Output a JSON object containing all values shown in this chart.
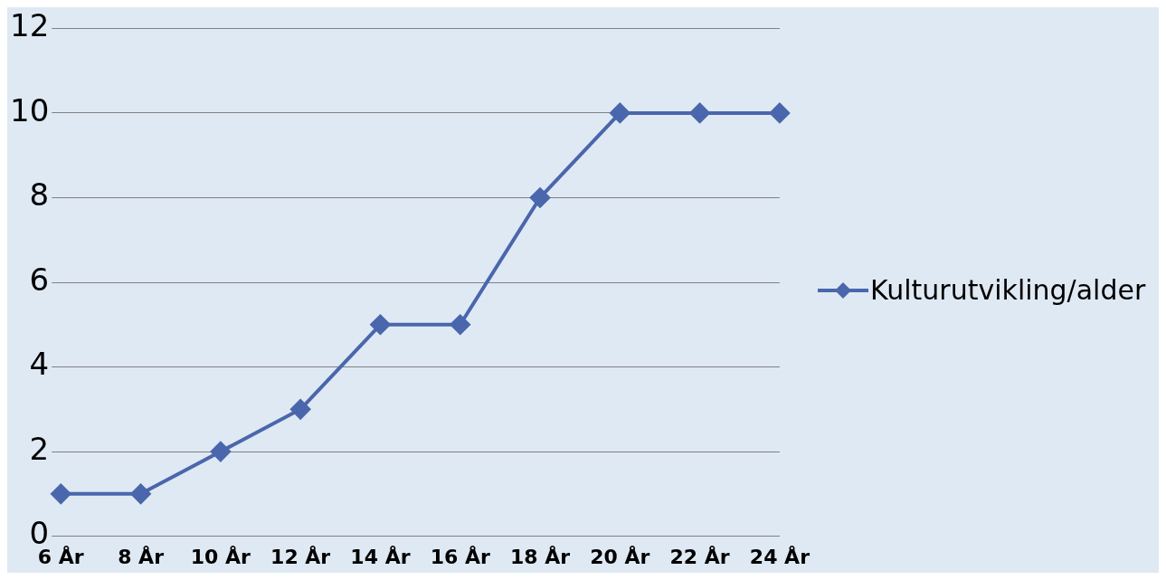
{
  "chart_data": {
    "type": "line",
    "categories": [
      "6 År",
      "8 År",
      "10 År",
      "12 År",
      "14 År",
      "16 År",
      "18 År",
      "20 År",
      "22 År",
      "24 År"
    ],
    "series": [
      {
        "name": "Kulturutvikling/alder",
        "color": "#4a66ac",
        "values": [
          1,
          1,
          2,
          3,
          5,
          5,
          8,
          10,
          10,
          10
        ]
      }
    ],
    "ylim": [
      0,
      12
    ],
    "yticks": [
      0,
      2,
      4,
      6,
      8,
      10,
      12
    ],
    "grid": "y",
    "legend": "right",
    "marker": "diamond",
    "line_style": "solid"
  }
}
